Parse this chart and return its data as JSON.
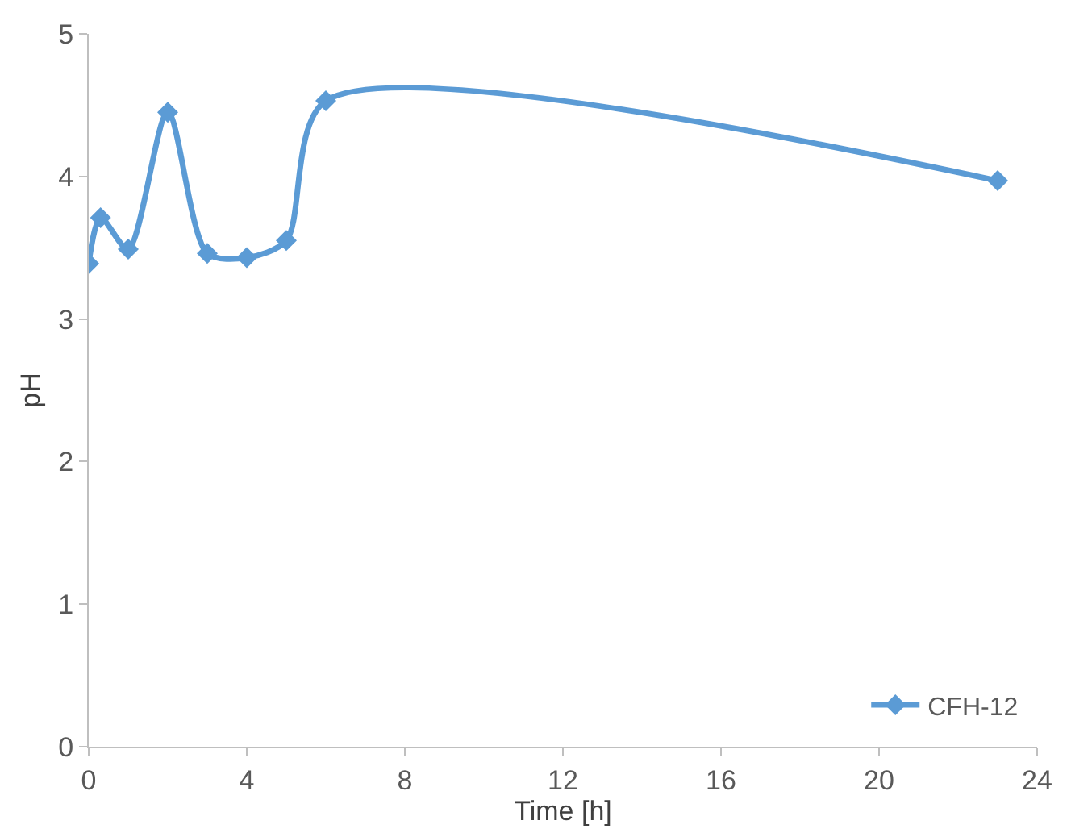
{
  "chart_data": {
    "type": "line",
    "xlabel": "Time [h]",
    "ylabel": "pH",
    "x": [
      0,
      0.3,
      1,
      2,
      3,
      4,
      5,
      6,
      23
    ],
    "series": [
      {
        "name": "CFH-12",
        "color": "#5b9bd5",
        "values": [
          3.39,
          3.71,
          3.49,
          4.45,
          3.46,
          3.43,
          3.55,
          4.53,
          3.97
        ]
      }
    ],
    "xlim": [
      0,
      24
    ],
    "xticks": [
      0,
      4,
      8,
      12,
      16,
      20,
      24
    ],
    "ylim": [
      0,
      5
    ],
    "yticks": [
      0,
      1,
      2,
      3,
      4,
      5
    ],
    "legend": "bottom right",
    "marker": "diamond",
    "line_style": "solid"
  }
}
